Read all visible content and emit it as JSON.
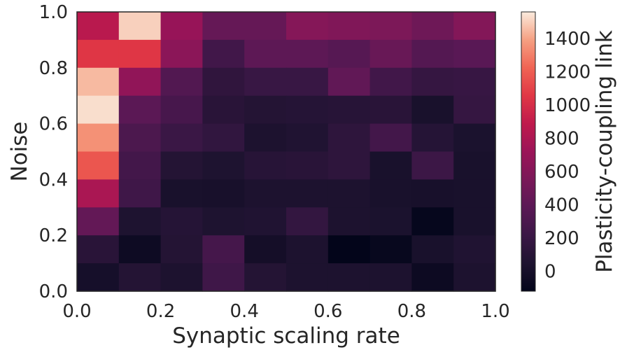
{
  "chart_data": {
    "type": "heatmap",
    "title": "",
    "xlabel": "Synaptic scaling rate",
    "ylabel": "Noise",
    "colorbar_label": "Plasticity-coupling link",
    "xlim": [
      0.0,
      1.0
    ],
    "ylim": [
      0.0,
      1.0
    ],
    "x_ticks": [
      "0.0",
      "0.2",
      "0.4",
      "0.6",
      "0.8",
      "1.0"
    ],
    "y_ticks": [
      "0.0",
      "0.2",
      "0.4",
      "0.6",
      "0.8",
      "1.0"
    ],
    "colorbar_ticks": [
      "0",
      "200",
      "400",
      "600",
      "800",
      "1000",
      "1200",
      "1400"
    ],
    "colorbar_range": [
      -120,
      1560
    ],
    "colormap": "rocket",
    "grid": false,
    "rows_top_to_bottom": [
      [
        860,
        1500,
        700,
        440,
        440,
        610,
        580,
        560,
        490,
        600
      ],
      [
        1050,
        1050,
        640,
        250,
        400,
        400,
        360,
        460,
        350,
        380
      ],
      [
        1450,
        670,
        340,
        150,
        200,
        200,
        420,
        250,
        180,
        190
      ],
      [
        1530,
        390,
        280,
        110,
        80,
        90,
        100,
        110,
        20,
        180
      ],
      [
        1350,
        310,
        210,
        160,
        40,
        60,
        140,
        260,
        90,
        30
      ],
      [
        1170,
        260,
        80,
        50,
        100,
        110,
        140,
        20,
        220,
        20
      ],
      [
        790,
        240,
        20,
        10,
        40,
        40,
        40,
        20,
        10,
        20
      ],
      [
        430,
        50,
        90,
        50,
        60,
        170,
        40,
        30,
        -100,
        20
      ],
      [
        110,
        -50,
        80,
        270,
        -10,
        40,
        -140,
        -90,
        20,
        60
      ],
      [
        0,
        80,
        40,
        240,
        80,
        40,
        40,
        40,
        -60,
        40
      ]
    ]
  }
}
